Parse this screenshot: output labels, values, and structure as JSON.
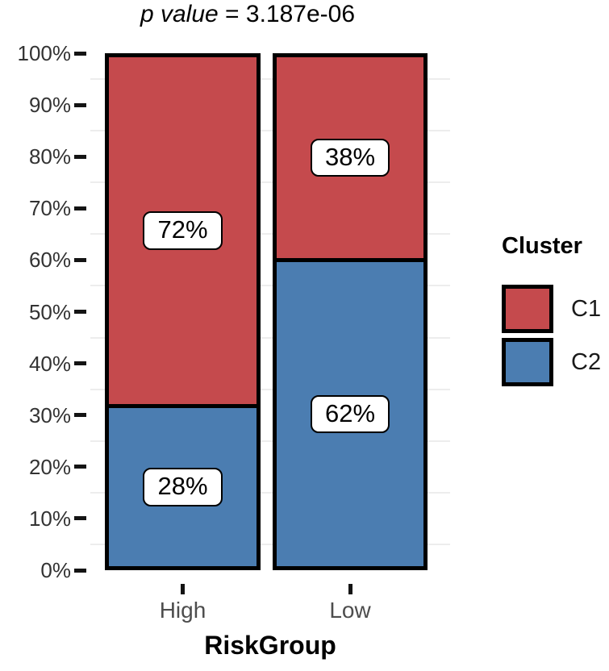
{
  "chart_data": {
    "type": "bar",
    "stacked": true,
    "percent": true,
    "title": "p value = 3.187e-06",
    "title_prefix": "p value",
    "title_suffix": " = 3.187e-06",
    "xlabel": "RiskGroup",
    "ylabel": "",
    "categories": [
      "High",
      "Low"
    ],
    "series": [
      {
        "name": "C1",
        "color": "#c54a4d",
        "values": [
          72,
          38
        ],
        "labels": [
          "72%",
          "38%"
        ]
      },
      {
        "name": "C2",
        "color": "#4b7db1",
        "values": [
          28,
          62
        ],
        "labels": [
          "28%",
          "62%"
        ]
      }
    ],
    "y_ticks": [
      "0%",
      "10%",
      "20%",
      "30%",
      "40%",
      "50%",
      "60%",
      "70%",
      "80%",
      "90%",
      "100%"
    ],
    "ylim": [
      0,
      100
    ],
    "grid": "minor-horizontal-only",
    "grid_color": "#ededed",
    "legend_title": "Cluster",
    "legend_position": "right",
    "bar_border_color": "#000000",
    "label_box_color": "#ffffff"
  }
}
